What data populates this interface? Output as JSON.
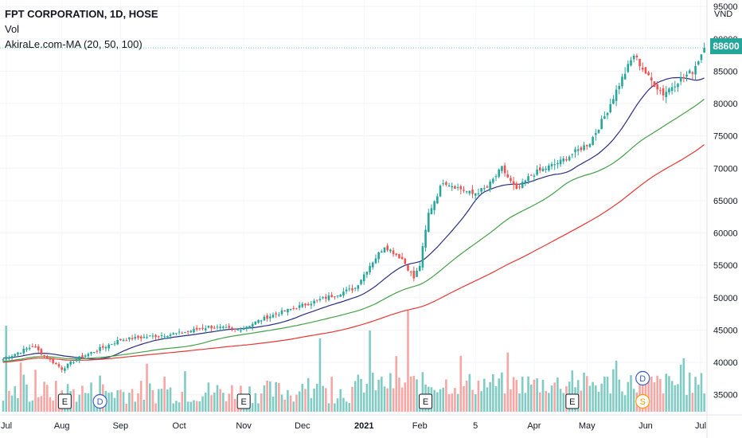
{
  "chart_data": {
    "type": "candlestick",
    "title": "FPT CORPORATION, 1D, HOSE",
    "volume_label": "Vol",
    "indicator_label": "AkiraLe.com-MA (20, 50, 100)",
    "currency": "VND",
    "last_price": "88600",
    "ylim": [
      32000,
      96000
    ],
    "y_ticks": [
      35000,
      40000,
      45000,
      50000,
      55000,
      60000,
      65000,
      70000,
      75000,
      80000,
      85000,
      90000,
      95000
    ],
    "y_tick_labels": [
      "35000",
      "40000",
      "45000",
      "50000",
      "55000",
      "60000",
      "65000",
      "70000",
      "75000",
      "80000",
      "85000",
      "90000",
      "95000"
    ],
    "x_ticks": [
      {
        "label": "Jul",
        "bar": 0
      },
      {
        "label": "Aug",
        "bar": 20
      },
      {
        "label": "Sep",
        "bar": 40
      },
      {
        "label": "Oct",
        "bar": 60
      },
      {
        "label": "Nov",
        "bar": 82
      },
      {
        "label": "Dec",
        "bar": 102
      },
      {
        "label": "2021",
        "bar": 123
      },
      {
        "label": "Feb",
        "bar": 142
      },
      {
        "label": "5",
        "bar": 161
      },
      {
        "label": "Apr",
        "bar": 181
      },
      {
        "label": "May",
        "bar": 199
      },
      {
        "label": "Jun",
        "bar": 219
      },
      {
        "label": "Jul",
        "bar": 240
      }
    ],
    "events": [
      {
        "type": "E",
        "bar": 21
      },
      {
        "type": "D",
        "bar": 33
      },
      {
        "type": "E",
        "bar": 82
      },
      {
        "type": "E",
        "bar": 144
      },
      {
        "type": "E",
        "bar": 194
      },
      {
        "type": "D",
        "bar": 218
      },
      {
        "type": "S",
        "bar": 218
      }
    ],
    "close_anchors": [
      [
        0,
        40500
      ],
      [
        10,
        42500
      ],
      [
        20,
        39000
      ],
      [
        25,
        40500
      ],
      [
        40,
        43500
      ],
      [
        60,
        44500
      ],
      [
        70,
        45500
      ],
      [
        80,
        45000
      ],
      [
        90,
        47000
      ],
      [
        100,
        48500
      ],
      [
        110,
        50000
      ],
      [
        120,
        51500
      ],
      [
        125,
        55000
      ],
      [
        130,
        58000
      ],
      [
        136,
        56000
      ],
      [
        140,
        53000
      ],
      [
        142,
        55000
      ],
      [
        145,
        63000
      ],
      [
        150,
        68000
      ],
      [
        155,
        67000
      ],
      [
        160,
        66000
      ],
      [
        165,
        67000
      ],
      [
        170,
        70000
      ],
      [
        175,
        66500
      ],
      [
        180,
        69000
      ],
      [
        185,
        70000
      ],
      [
        190,
        71000
      ],
      [
        200,
        74000
      ],
      [
        205,
        78000
      ],
      [
        210,
        83000
      ],
      [
        215,
        87500
      ],
      [
        220,
        84000
      ],
      [
        225,
        81500
      ],
      [
        230,
        83500
      ],
      [
        235,
        85000
      ],
      [
        239,
        88600
      ]
    ],
    "colors": {
      "up": "#26a69a",
      "down": "#ef5350",
      "up_vol": "#80cbc4",
      "down_vol": "#f7a6a4",
      "ma20": "#2a2e80",
      "ma50": "#43a047",
      "ma100": "#e53935",
      "event": "#131722",
      "dividend": "#3b5db7",
      "split": "#ff9800"
    },
    "series": [
      {
        "name": "MA 20",
        "period": 20
      },
      {
        "name": "MA 50",
        "period": 50
      },
      {
        "name": "MA 100",
        "period": 100
      }
    ]
  }
}
